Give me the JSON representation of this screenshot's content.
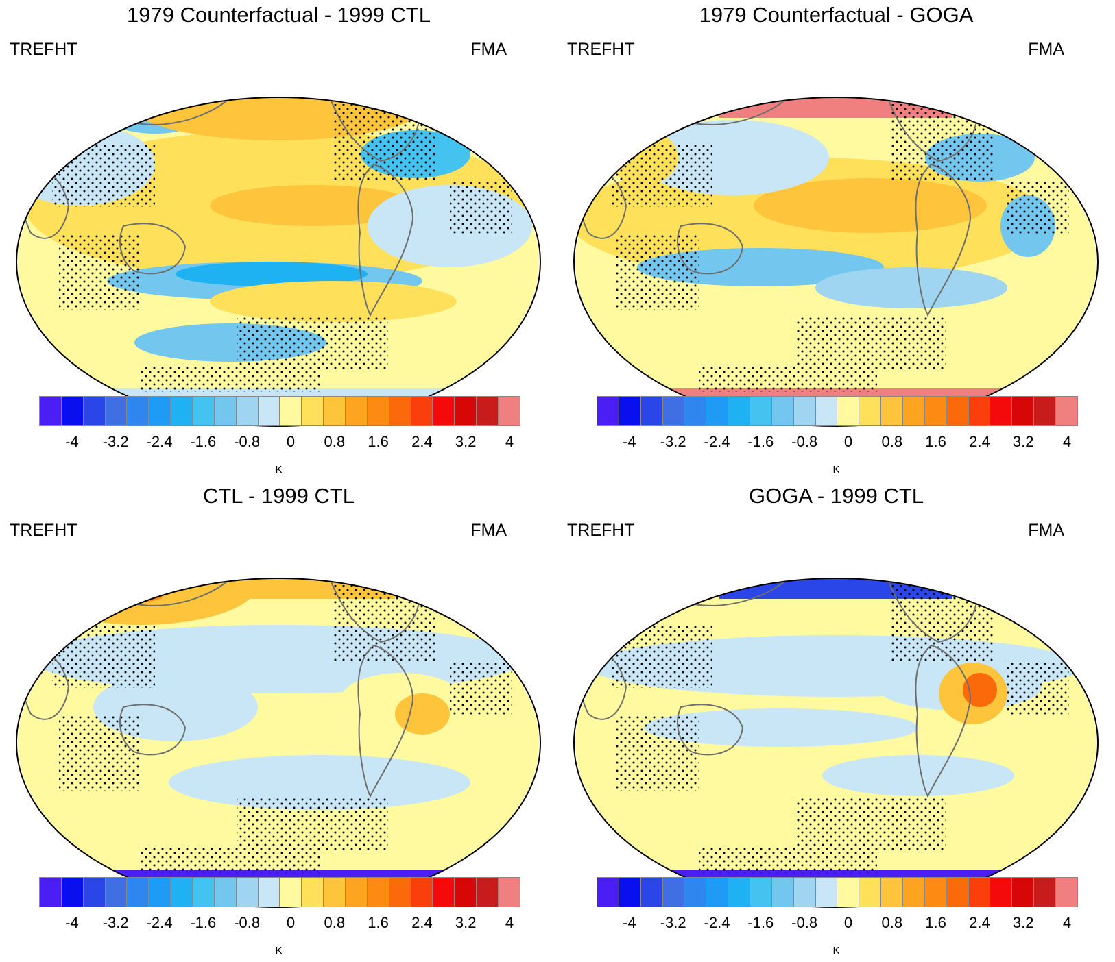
{
  "variable": "TREFHT",
  "season": "FMA",
  "colorbar": {
    "unit": "K",
    "colors": [
      "#4b1ef5",
      "#0a0ff0",
      "#2a46e8",
      "#3f6fe3",
      "#2f86ee",
      "#1f9bf5",
      "#1eb2f3",
      "#44c3f1",
      "#73c6ee",
      "#9fd5f0",
      "#c8e6f5",
      "#fffaa0",
      "#fee05a",
      "#fdc43c",
      "#fda521",
      "#fd8a12",
      "#fb6a0a",
      "#fa3f0c",
      "#f40a0a",
      "#d80707",
      "#c81b1b",
      "#f08080"
    ],
    "tick_labels": [
      "-4",
      "-3.2",
      "-2.4",
      "-1.6",
      "-0.8",
      "0",
      "0.8",
      "1.6",
      "2.4",
      "3.2",
      "4"
    ]
  },
  "panels": [
    {
      "title": "1979 Counterfactual - 1999 CTL",
      "antarctica": "#c8e6f5",
      "arctic": "#fdc43c"
    },
    {
      "title": "1979 Counterfactual - GOGA",
      "antarctica": "#f08080",
      "arctic": "#f08080"
    },
    {
      "title": "CTL - 1999 CTL",
      "antarctica": "#4b1ef5",
      "arctic": "#fdc43c"
    },
    {
      "title": "GOGA - 1999 CTL",
      "antarctica": "#4b1ef5",
      "arctic": "#2a46e8"
    }
  ]
}
